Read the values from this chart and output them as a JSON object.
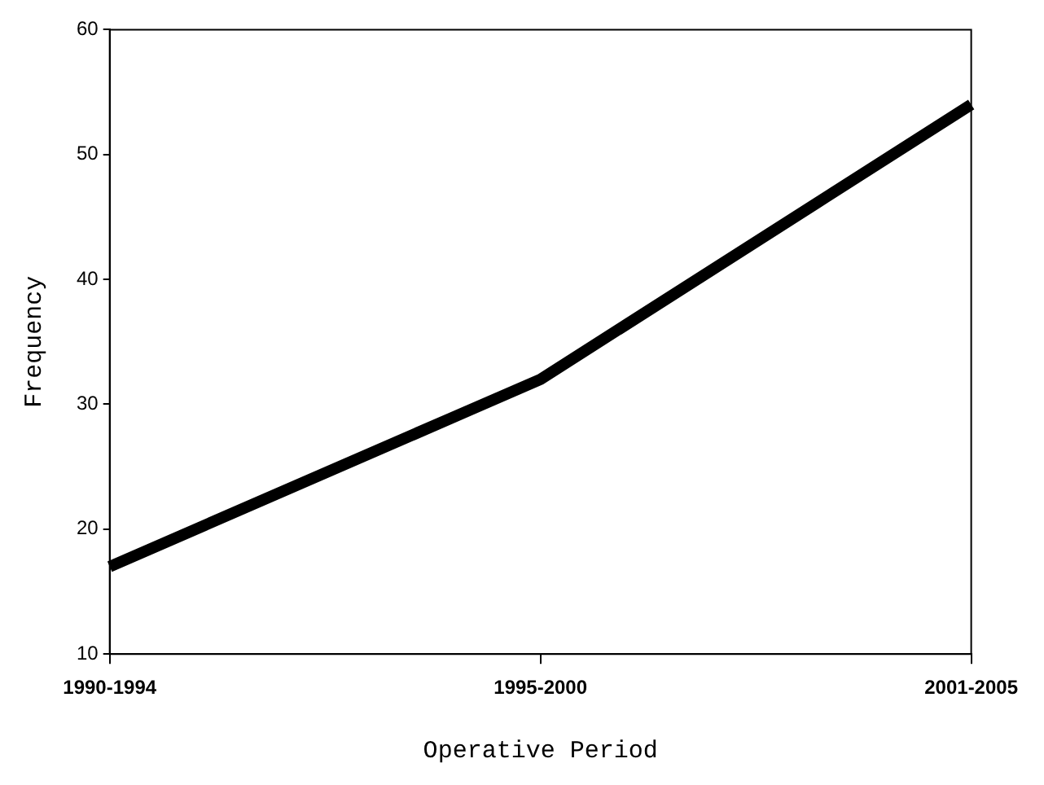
{
  "chart_data": {
    "type": "line",
    "xlabel": "Operative Period",
    "ylabel": "Frequency",
    "categories": [
      "1990-1994",
      "1995-2000",
      "2001-2005"
    ],
    "series": [
      {
        "color": "#000000",
        "values": [
          17,
          32,
          54
        ]
      }
    ],
    "ylim": [
      10,
      60
    ],
    "yticks": [
      10,
      20,
      30,
      40,
      50,
      60
    ],
    "grid": false,
    "legend": false,
    "marker": "none",
    "line_style": "solid"
  }
}
